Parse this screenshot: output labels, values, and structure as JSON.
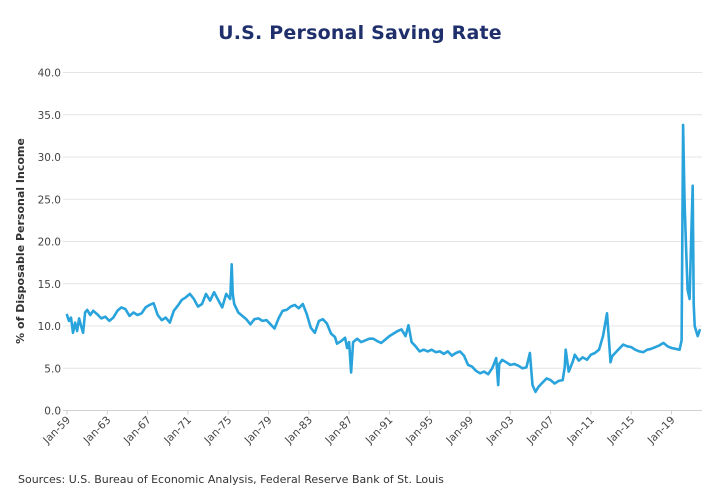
{
  "chart_data": {
    "type": "line",
    "title": "U.S. Personal Saving Rate",
    "xlabel": "",
    "ylabel": "% of Disposable Personal Income",
    "ylim": [
      0,
      40
    ],
    "yticks": [
      "0.0",
      "5.0",
      "10.0",
      "15.0",
      "20.0",
      "25.0",
      "30.0",
      "35.0",
      "40.0"
    ],
    "ytick_values": [
      0,
      5,
      10,
      15,
      20,
      25,
      30,
      35,
      40
    ],
    "xticks": [
      "Jan-59",
      "Jan-63",
      "Jan-67",
      "Jan-71",
      "Jan-75",
      "Jan-79",
      "Jan-83",
      "Jan-87",
      "Jan-91",
      "Jan-95",
      "Jan-99",
      "Jan-03",
      "Jan-07",
      "Jan-11",
      "Jan-15",
      "Jan-19"
    ],
    "xtick_years": [
      1959,
      1963,
      1967,
      1971,
      1975,
      1979,
      1983,
      1987,
      1991,
      1995,
      1999,
      2003,
      2007,
      2011,
      2015,
      2019
    ],
    "xlim": [
      1959,
      2021.8
    ],
    "grid": true,
    "legend": "none",
    "series": [
      {
        "name": "Personal Saving Rate",
        "color": "#29a3dc",
        "x": [
          1959.0,
          1959.2,
          1959.4,
          1959.6,
          1959.8,
          1960.0,
          1960.2,
          1960.4,
          1960.6,
          1960.8,
          1961.0,
          1961.3,
          1961.6,
          1962.0,
          1962.4,
          1962.8,
          1963.2,
          1963.6,
          1964.0,
          1964.4,
          1964.8,
          1965.2,
          1965.6,
          1966.0,
          1966.4,
          1966.8,
          1967.2,
          1967.6,
          1968.0,
          1968.4,
          1968.8,
          1969.2,
          1969.6,
          1970.0,
          1970.4,
          1970.8,
          1971.2,
          1971.6,
          1972.0,
          1972.4,
          1972.8,
          1973.2,
          1973.6,
          1974.0,
          1974.4,
          1974.8,
          1975.2,
          1975.35,
          1975.45,
          1975.6,
          1976.0,
          1976.4,
          1976.8,
          1977.2,
          1977.6,
          1978.0,
          1978.4,
          1978.8,
          1979.2,
          1979.6,
          1980.0,
          1980.4,
          1980.8,
          1981.2,
          1981.6,
          1982.0,
          1982.4,
          1982.8,
          1983.2,
          1983.6,
          1984.0,
          1984.4,
          1984.8,
          1985.2,
          1985.6,
          1985.8,
          1986.2,
          1986.6,
          1986.8,
          1987.0,
          1987.2,
          1987.4,
          1987.8,
          1988.2,
          1988.6,
          1989.0,
          1989.4,
          1989.8,
          1990.2,
          1990.6,
          1991.0,
          1991.4,
          1991.8,
          1992.2,
          1992.6,
          1992.9,
          1993.2,
          1993.6,
          1994.0,
          1994.4,
          1994.8,
          1995.2,
          1995.6,
          1996.0,
          1996.4,
          1996.8,
          1997.2,
          1997.6,
          1998.0,
          1998.4,
          1998.8,
          1999.2,
          1999.6,
          2000.0,
          2000.4,
          2000.8,
          2001.2,
          2001.6,
          2001.8,
          2001.9,
          2002.2,
          2002.6,
          2003.0,
          2003.4,
          2003.8,
          2004.2,
          2004.6,
          2004.95,
          2005.2,
          2005.5,
          2005.8,
          2006.2,
          2006.6,
          2007.0,
          2007.4,
          2007.8,
          2008.2,
          2008.4,
          2008.5,
          2008.8,
          2009.2,
          2009.4,
          2009.8,
          2010.2,
          2010.6,
          2011.0,
          2011.4,
          2011.8,
          2012.2,
          2012.6,
          2012.9,
          2012.95,
          2013.1,
          2013.4,
          2013.8,
          2014.2,
          2014.6,
          2015.0,
          2015.4,
          2015.8,
          2016.2,
          2016.6,
          2017.0,
          2017.4,
          2017.8,
          2018.2,
          2018.6,
          2019.0,
          2019.4,
          2019.8,
          2020.0,
          2020.15,
          2020.3,
          2020.45,
          2020.6,
          2020.8,
          2020.95,
          2021.1,
          2021.2,
          2021.3,
          2021.45,
          2021.6,
          2021.8
        ],
        "values": [
          11.3,
          10.6,
          11.0,
          9.2,
          10.4,
          9.4,
          10.9,
          10.0,
          9.2,
          11.6,
          11.9,
          11.3,
          11.8,
          11.4,
          10.9,
          11.1,
          10.6,
          11.0,
          11.8,
          12.2,
          12.0,
          11.2,
          11.6,
          11.3,
          11.5,
          12.2,
          12.5,
          12.7,
          11.3,
          10.7,
          11.0,
          10.4,
          11.8,
          12.4,
          13.1,
          13.4,
          13.8,
          13.2,
          12.3,
          12.6,
          13.8,
          13.0,
          14.0,
          13.1,
          12.2,
          13.8,
          13.2,
          17.3,
          13.9,
          12.6,
          11.6,
          11.2,
          10.8,
          10.2,
          10.8,
          10.9,
          10.6,
          10.7,
          10.2,
          9.7,
          10.9,
          11.8,
          11.9,
          12.3,
          12.5,
          12.1,
          12.6,
          11.4,
          9.8,
          9.2,
          10.6,
          10.8,
          10.3,
          9.1,
          8.7,
          7.9,
          8.2,
          8.6,
          7.4,
          8.1,
          4.5,
          8.1,
          8.5,
          8.1,
          8.3,
          8.5,
          8.5,
          8.2,
          8.0,
          8.4,
          8.8,
          9.1,
          9.4,
          9.6,
          8.8,
          10.1,
          8.1,
          7.6,
          7.0,
          7.2,
          7.0,
          7.2,
          6.9,
          7.0,
          6.7,
          7.0,
          6.5,
          6.8,
          7.0,
          6.5,
          5.4,
          5.2,
          4.7,
          4.4,
          4.6,
          4.3,
          5.0,
          6.2,
          3.0,
          5.5,
          6.0,
          5.7,
          5.4,
          5.5,
          5.3,
          5.0,
          5.1,
          6.8,
          3.0,
          2.2,
          2.8,
          3.3,
          3.8,
          3.6,
          3.2,
          3.5,
          3.6,
          5.1,
          7.2,
          4.6,
          5.8,
          6.6,
          5.9,
          6.3,
          6.0,
          6.6,
          6.8,
          7.2,
          8.8,
          11.5,
          6.6,
          5.7,
          6.4,
          6.8,
          7.3,
          7.8,
          7.6,
          7.5,
          7.2,
          7.0,
          6.9,
          7.2,
          7.3,
          7.5,
          7.7,
          8.0,
          7.6,
          7.4,
          7.3,
          7.2,
          8.3,
          33.8,
          24.5,
          19.2,
          14.3,
          13.2,
          20.0,
          26.6,
          12.6,
          10.0,
          9.4,
          8.8,
          9.5
        ]
      }
    ],
    "source": "Sources: U.S. Bureau of Economic Analysis, Federal Reserve Bank of St. Louis"
  }
}
